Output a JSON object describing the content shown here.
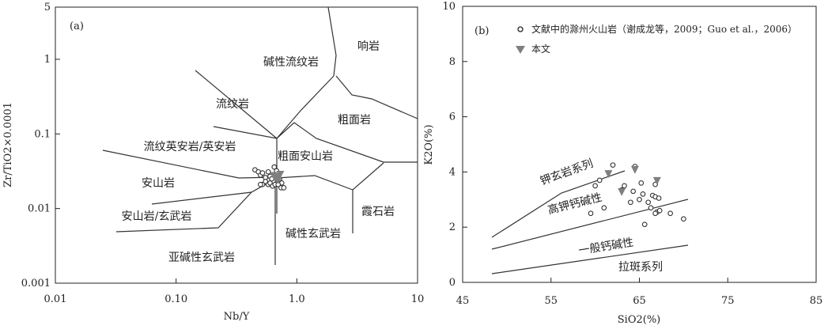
{
  "chart_data": [
    {
      "type": "scatter",
      "panel_label": "(a)",
      "xlabel": "Nb/Y",
      "ylabel": "Zr/TiO2×0.0001",
      "x_scale": "log",
      "y_scale": "log",
      "xlim": [
        0.01,
        10
      ],
      "ylim": [
        0.001,
        5
      ],
      "x_ticks": [
        "0.01",
        "0.10",
        "1.0",
        "10"
      ],
      "y_ticks": [
        "0.001",
        "0.01",
        "0.1",
        "1",
        "5"
      ],
      "fields": [
        "碱性流纹岩",
        "响岩",
        "流纹岩",
        "粗面岩",
        "流纹英安岩/英安岩",
        "粗面安山岩",
        "安山岩",
        "安山岩/玄武岩",
        "霞石岩",
        "碱性玄武岩",
        "亚碱性玄武岩"
      ],
      "series": [
        {
          "marker": "open-circle",
          "points": [
            [
              0.45,
              0.033
            ],
            [
              0.48,
              0.031
            ],
            [
              0.5,
              0.028
            ],
            [
              0.52,
              0.03
            ],
            [
              0.55,
              0.026
            ],
            [
              0.58,
              0.031
            ],
            [
              0.6,
              0.027
            ],
            [
              0.62,
              0.025
            ],
            [
              0.65,
              0.036
            ],
            [
              0.68,
              0.032
            ],
            [
              0.7,
              0.029
            ],
            [
              0.72,
              0.025
            ],
            [
              0.75,
              0.022
            ],
            [
              0.55,
              0.023
            ],
            [
              0.58,
              0.021
            ],
            [
              0.52,
              0.021
            ],
            [
              0.6,
              0.022
            ],
            [
              0.63,
              0.02
            ],
            [
              0.66,
              0.021
            ],
            [
              0.74,
              0.019
            ],
            [
              0.78,
              0.019
            ],
            [
              0.5,
              0.021
            ],
            [
              0.7,
              0.021
            ],
            [
              0.66,
              0.028
            ]
          ]
        },
        {
          "marker": "filled-triangle-down",
          "points": [
            [
              0.64,
              0.028
            ],
            [
              0.68,
              0.025
            ],
            [
              0.71,
              0.027
            ],
            [
              0.73,
              0.029
            ],
            [
              0.7,
              0.024
            ],
            [
              0.66,
              0.026
            ]
          ]
        }
      ]
    },
    {
      "type": "scatter",
      "panel_label": "(b)",
      "xlabel": "SiO2(%)",
      "ylabel": "K2O(%)",
      "xlim": [
        45,
        85
      ],
      "ylim": [
        0,
        10
      ],
      "x_ticks": [
        "45",
        "55",
        "65",
        "75",
        "85"
      ],
      "y_ticks": [
        "0",
        "2",
        "4",
        "6",
        "8",
        "10"
      ],
      "fields": [
        "钾玄岩系列",
        "高钾钙碱性",
        "一般钙碱性",
        "拉斑系列"
      ],
      "legend": {
        "position": "top-left",
        "entries": [
          {
            "label": "文献中的滁州火山岩（谢成龙等，2009；Guo et al.，2006）",
            "marker": "open-circle"
          },
          {
            "label": "本文",
            "marker": "filled-triangle-down"
          }
        ]
      },
      "series": [
        {
          "name": "文献中的滁州火山岩（谢成龙等，2009；Guo et al.，2006）",
          "marker": "open-circle",
          "points": [
            [
              59.5,
              2.5
            ],
            [
              60,
              3.5
            ],
            [
              60.5,
              3.7
            ],
            [
              61,
              2.7
            ],
            [
              62,
              4.25
            ],
            [
              63,
              3.35
            ],
            [
              63.3,
              3.5
            ],
            [
              64,
              2.9
            ],
            [
              64.3,
              3.3
            ],
            [
              64.5,
              4.2
            ],
            [
              65,
              3.0
            ],
            [
              65.2,
              3.6
            ],
            [
              65.4,
              3.2
            ],
            [
              65.6,
              2.1
            ],
            [
              66,
              2.9
            ],
            [
              66.3,
              2.7
            ],
            [
              66.5,
              3.15
            ],
            [
              66.8,
              3.1
            ],
            [
              67,
              2.55
            ],
            [
              67.2,
              3.05
            ],
            [
              67.3,
              2.6
            ],
            [
              66.8,
              2.5
            ],
            [
              68.5,
              2.5
            ],
            [
              70,
              2.3
            ],
            [
              66.8,
              3.55
            ]
          ]
        },
        {
          "name": "本文",
          "marker": "filled-triangle-down",
          "points": [
            [
              61.5,
              3.95
            ],
            [
              63,
              3.3
            ],
            [
              64.5,
              4.1
            ],
            [
              67,
              3.7
            ]
          ]
        }
      ]
    }
  ]
}
